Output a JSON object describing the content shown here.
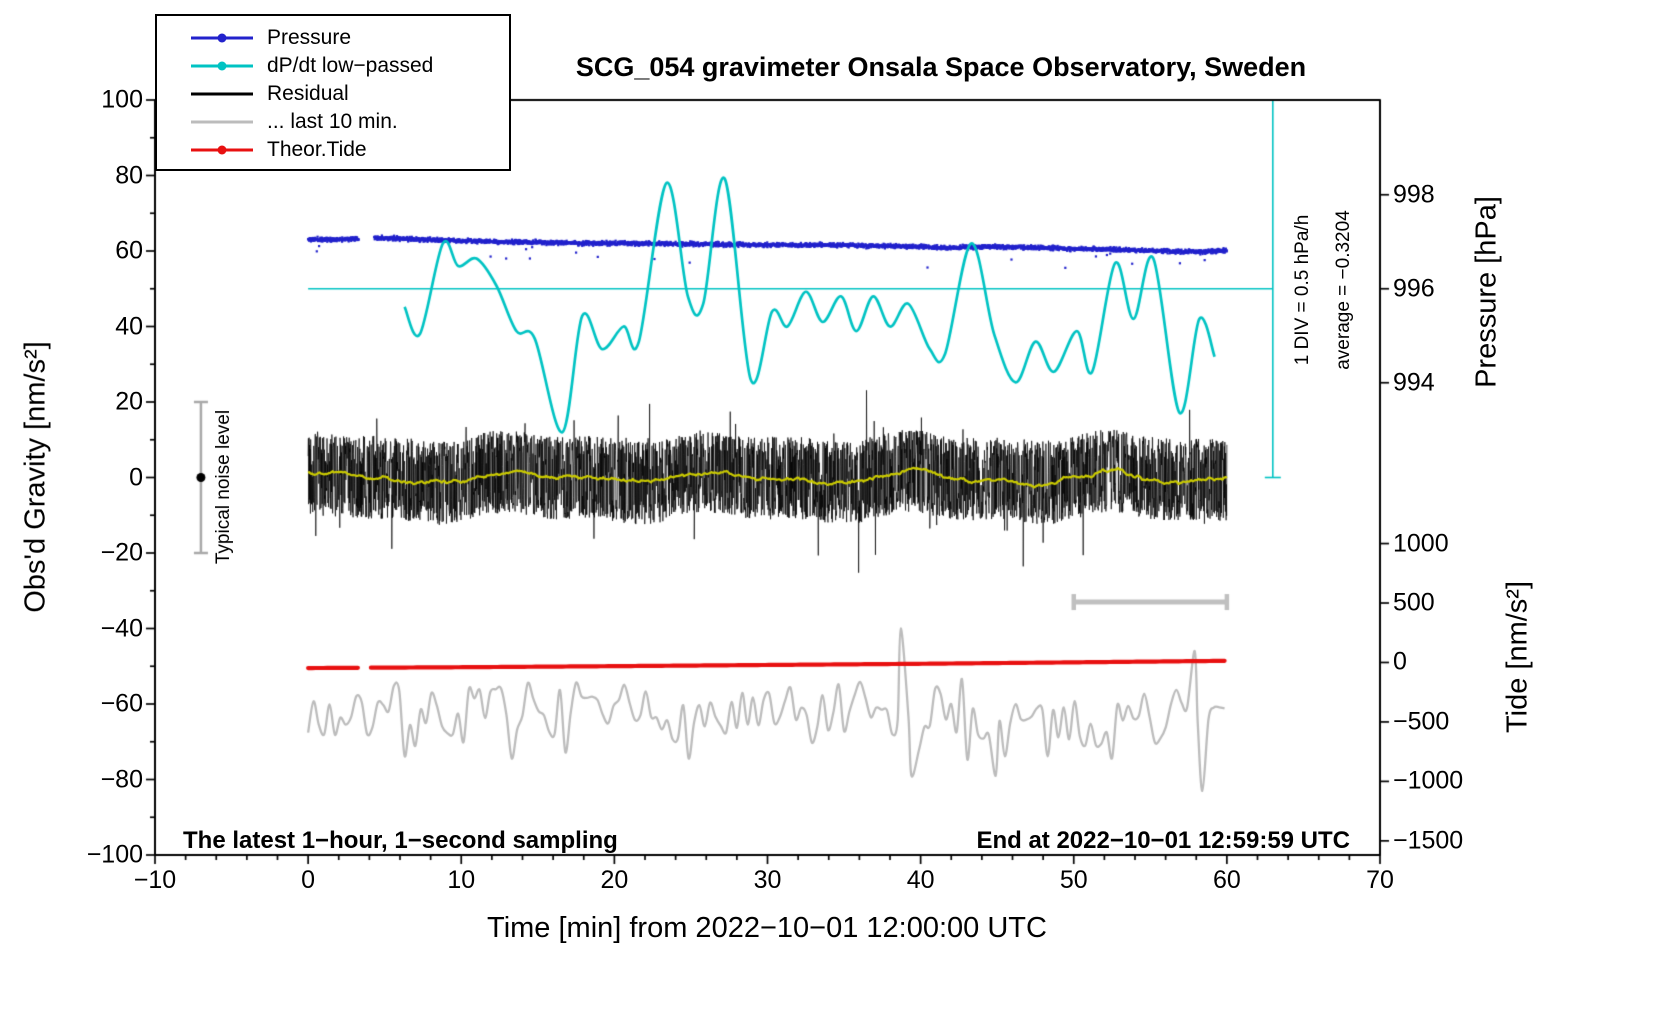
{
  "title": "SCG_054 gravimeter Onsala Space Observatory, Sweden",
  "footer_left": "The latest 1−hour, 1−second sampling",
  "footer_right": "End at 2022−10−01 12:59:59 UTC",
  "annotations": {
    "div_scale": "1 DIV = 0.5 hPa/h",
    "average": "average = −0.3204",
    "noise_level": "Typical noise level"
  },
  "legend": {
    "items": [
      {
        "label": "Pressure",
        "color": "#2222cc",
        "dot": true
      },
      {
        "label": "dP/dt low−passed",
        "color": "#00c3c3",
        "dot": true
      },
      {
        "label": "Residual",
        "color": "#000000",
        "dot": false
      },
      {
        "label": "... last 10 min.",
        "color": "#bcbcbc",
        "dot": false
      },
      {
        "label": "Theor.Tide",
        "color": "#e81010",
        "dot": true
      }
    ]
  },
  "chart_data": {
    "type": "line",
    "title": "SCG_054 gravimeter Onsala Space Observatory, Sweden",
    "x_axis": {
      "label": "Time [min] from 2022−10−01 12:00:00 UTC",
      "range": [
        -10,
        70
      ],
      "major_ticks": [
        -10,
        0,
        10,
        20,
        30,
        40,
        50,
        60,
        70
      ],
      "minor_tick_step": 2
    },
    "y_left": {
      "label": "Obs'd Gravity [nm/s²]",
      "range": [
        -100,
        100
      ],
      "major_ticks": [
        -100,
        -80,
        -60,
        -40,
        -20,
        0,
        20,
        40,
        60,
        80,
        100
      ],
      "minor_tick_step": 10
    },
    "y_right_pressure": {
      "label": "Pressure [hPa]",
      "ticks": [
        994,
        996,
        998
      ]
    },
    "y_right_tide": {
      "label": "Tide [nm/s²]",
      "ticks": [
        1000,
        500,
        0,
        -500,
        -1000,
        -1500
      ]
    },
    "axis_mappings": {
      "gravity": {
        "ref_value": 0,
        "gravity_at_ref": 0,
        "gravity_per_unit": 1
      },
      "pressure": {
        "ref_value": 996,
        "gravity_at_ref": 50,
        "gravity_per_unit": 12.45
      },
      "dpdt": {
        "ref_value": 0,
        "gravity_at_ref": 50,
        "gravity_per_unit": 40
      },
      "tide": {
        "ref_value": 0,
        "gravity_at_ref": -49,
        "gravity_per_unit": 0.0315
      }
    },
    "noise_bar": {
      "at_min": -7,
      "gravity_range": [
        -20,
        20
      ],
      "dot_gravity": 0,
      "color": "#a9a9a9"
    },
    "scale_bar": {
      "from_min": 50,
      "to_min": 60,
      "gravity": -33,
      "color": "#c0c0c0"
    },
    "series": [
      {
        "id": "pressure",
        "name": "Pressure",
        "color": "#2222cc",
        "axis": "pressure",
        "style": "dots",
        "sampling": "1 s",
        "gap_min": [
          3.3,
          4.3
        ],
        "seed": 11,
        "scatter_hpa": 0.022,
        "keypoints": [
          [
            0,
            997.05
          ],
          [
            3,
            997.06
          ],
          [
            5,
            997.08
          ],
          [
            8,
            997.04
          ],
          [
            10,
            997.02
          ],
          [
            14,
            996.99
          ],
          [
            18,
            996.97
          ],
          [
            22,
            996.96
          ],
          [
            26,
            996.95
          ],
          [
            30,
            996.93
          ],
          [
            34,
            996.93
          ],
          [
            38,
            996.91
          ],
          [
            42,
            996.87
          ],
          [
            44,
            996.9
          ],
          [
            47,
            996.88
          ],
          [
            50,
            996.85
          ],
          [
            53,
            996.83
          ],
          [
            56,
            996.8
          ],
          [
            58,
            996.78
          ],
          [
            60,
            996.82
          ]
        ]
      },
      {
        "id": "dpdt",
        "name": "dP/dt low−passed",
        "color": "#00c3c3",
        "axis": "dpdt",
        "unit": "hPa/h",
        "zero_line": {
          "from_min": 0,
          "to_min": 63,
          "value": 0
        },
        "div_indicator": {
          "at_min": 63,
          "gravity_from": 0,
          "gravity_to": 100
        },
        "keypoints": [
          [
            6.3,
            -0.12
          ],
          [
            7.3,
            -0.3
          ],
          [
            8.8,
            0.3
          ],
          [
            9.8,
            0.15
          ],
          [
            11,
            0.2
          ],
          [
            12.3,
            0.02
          ],
          [
            13.6,
            -0.28
          ],
          [
            14.8,
            -0.33
          ],
          [
            16.6,
            -0.95
          ],
          [
            17.9,
            -0.18
          ],
          [
            19.2,
            -0.4
          ],
          [
            20.6,
            -0.25
          ],
          [
            21.6,
            -0.35
          ],
          [
            23.4,
            0.7
          ],
          [
            24.8,
            -0.05
          ],
          [
            25.8,
            -0.1
          ],
          [
            27.2,
            0.73
          ],
          [
            28.9,
            -0.6
          ],
          [
            30.3,
            -0.15
          ],
          [
            31.3,
            -0.25
          ],
          [
            32.5,
            -0.02
          ],
          [
            33.6,
            -0.22
          ],
          [
            34.8,
            -0.05
          ],
          [
            35.8,
            -0.28
          ],
          [
            36.9,
            -0.05
          ],
          [
            38,
            -0.25
          ],
          [
            39.2,
            -0.1
          ],
          [
            40.6,
            -0.4
          ],
          [
            41.6,
            -0.43
          ],
          [
            43.3,
            0.3
          ],
          [
            44.8,
            -0.3
          ],
          [
            46.2,
            -0.62
          ],
          [
            47.5,
            -0.35
          ],
          [
            48.7,
            -0.55
          ],
          [
            50.2,
            -0.28
          ],
          [
            51.2,
            -0.55
          ],
          [
            52.7,
            0.17
          ],
          [
            53.9,
            -0.2
          ],
          [
            55.2,
            0.2
          ],
          [
            56.9,
            -0.82
          ],
          [
            58.2,
            -0.2
          ],
          [
            59.2,
            -0.45
          ]
        ]
      },
      {
        "id": "residual",
        "name": "Residual",
        "color": "#000000",
        "axis": "gravity",
        "type": "noise",
        "from_min": 0,
        "to_min": 60,
        "rate_hz": 1,
        "amplitude": 11,
        "spike_probability": 0.02,
        "seed": 42
      },
      {
        "id": "residual_mean",
        "name": "Residual running mean",
        "color": "#c9c900",
        "axis": "gravity",
        "derived_from": "residual",
        "window_s": 120
      },
      {
        "id": "last10",
        "name": "... last 10 min.",
        "color": "#bcbcbc",
        "axis": "gravity",
        "type": "smooth_noise",
        "from_min": 0,
        "to_min": 60,
        "mean": -64,
        "amplitude": 8,
        "node_interval_min": 0.35,
        "seed": 7,
        "extremes": [
          [
            38.7,
            -40
          ],
          [
            39.4,
            -79
          ],
          [
            44.9,
            -79
          ],
          [
            57.9,
            -46
          ],
          [
            58.4,
            -83
          ]
        ]
      },
      {
        "id": "theor_tide",
        "name": "Theor.Tide",
        "color": "#e81010",
        "axis": "tide",
        "unit": "nm/s²",
        "gap_min": [
          3.3,
          4.1
        ],
        "keypoints": [
          [
            0,
            -47
          ],
          [
            10,
            -40
          ],
          [
            20,
            -31
          ],
          [
            30,
            -21
          ],
          [
            40,
            -11
          ],
          [
            50,
            1
          ],
          [
            60,
            14
          ]
        ]
      }
    ]
  }
}
